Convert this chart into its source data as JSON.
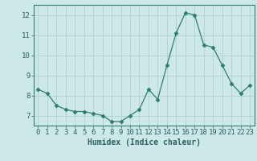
{
  "x": [
    0,
    1,
    2,
    3,
    4,
    5,
    6,
    7,
    8,
    9,
    10,
    11,
    12,
    13,
    14,
    15,
    16,
    17,
    18,
    19,
    20,
    21,
    22,
    23
  ],
  "y": [
    8.3,
    8.1,
    7.5,
    7.3,
    7.2,
    7.2,
    7.1,
    7.0,
    6.7,
    6.7,
    7.0,
    7.3,
    8.3,
    7.8,
    9.5,
    11.1,
    12.1,
    12.0,
    10.5,
    10.4,
    9.5,
    8.6,
    8.1,
    8.5
  ],
  "line_color": "#2e7d6e",
  "marker": "D",
  "marker_size": 2.5,
  "bg_color": "#cce8e8",
  "grid_color": "#b0cfcf",
  "axis_color": "#2e7d6e",
  "xlabel": "Humidex (Indice chaleur)",
  "xlabel_fontsize": 7,
  "ylabel_ticks": [
    7,
    8,
    9,
    10,
    11,
    12
  ],
  "xlim": [
    -0.5,
    23.5
  ],
  "ylim": [
    6.5,
    12.5
  ],
  "tick_fontsize": 6.5,
  "tick_color": "#2e6060"
}
